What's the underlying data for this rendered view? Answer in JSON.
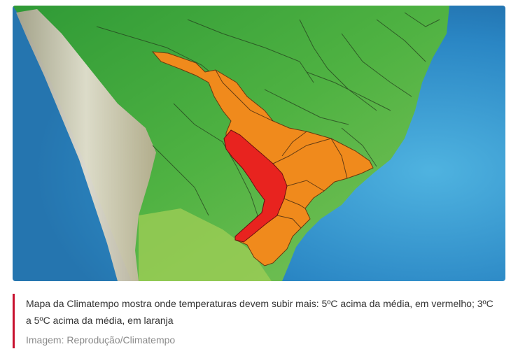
{
  "map": {
    "colors": {
      "ocean": "#2a86c4",
      "land_green": "#3aa33a",
      "mountains": "#c9c1ad",
      "highlight_red": "#e8231f",
      "highlight_orange": "#f08a1c"
    },
    "legend_meaning": {
      "red": "5ºC acima da média",
      "orange": "3ºC a 5ºC acima da média"
    }
  },
  "caption": {
    "text": "Mapa da Climatempo mostra onde temperaturas devem subir mais: 5ºC acima da média, em vermelho; 3ºC a 5ºC acima da média, em laranja",
    "credit": "Imagem: Reprodução/Climatempo"
  }
}
